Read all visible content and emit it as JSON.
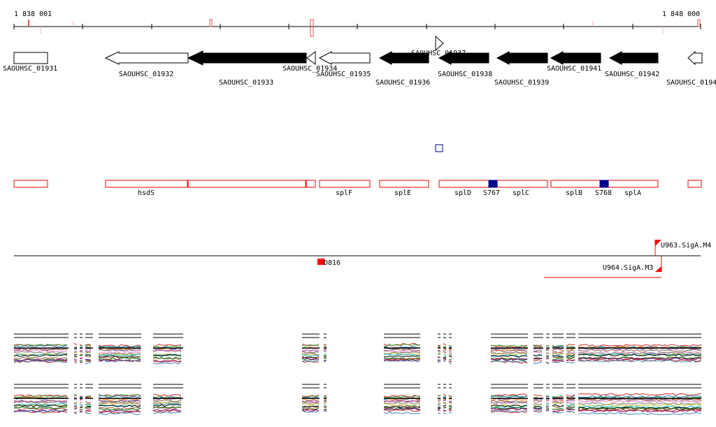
{
  "ruler": {
    "start_label": "1 838 001",
    "end_label": "1 848 000"
  },
  "genes": [
    {
      "id": "SAOUHSC_01931",
      "strand": "none",
      "fill": "white"
    },
    {
      "id": "SAOUHSC_01932",
      "strand": "minus",
      "fill": "white"
    },
    {
      "id": "SAOUHSC_01933",
      "strand": "minus",
      "fill": "black"
    },
    {
      "id": "SAOUHSC_01934",
      "strand": "minus",
      "fill": "white"
    },
    {
      "id": "SAOUHSC_01935",
      "strand": "minus",
      "fill": "white"
    },
    {
      "id": "SAOUHSC_01936",
      "strand": "plus",
      "fill": "black"
    },
    {
      "id": "SAOUHSC_01937",
      "strand": "plus",
      "fill": "white"
    },
    {
      "id": "SAOUHSC_01938",
      "strand": "minus",
      "fill": "black"
    },
    {
      "id": "SAOUHSC_01939",
      "strand": "minus",
      "fill": "black"
    },
    {
      "id": "SAOUHSC_01941",
      "strand": "minus",
      "fill": "black"
    },
    {
      "id": "SAOUHSC_01942",
      "strand": "minus",
      "fill": "black"
    },
    {
      "id": "SAOUHSC_0194",
      "strand": "minus",
      "fill": "white"
    }
  ],
  "operon_labels": [
    "hsdS",
    "splF",
    "splE",
    "splD",
    "S767",
    "splC",
    "splB",
    "S768",
    "splA"
  ],
  "features": {
    "d816": "D816",
    "u963": "U963.SigA.M4",
    "u964": "U964.SigA.M3"
  },
  "colors": {
    "gene_fill": "#000000",
    "operon_stroke": "#ff0000",
    "srna_fill": "#00008b",
    "feature": "#ff0000"
  }
}
